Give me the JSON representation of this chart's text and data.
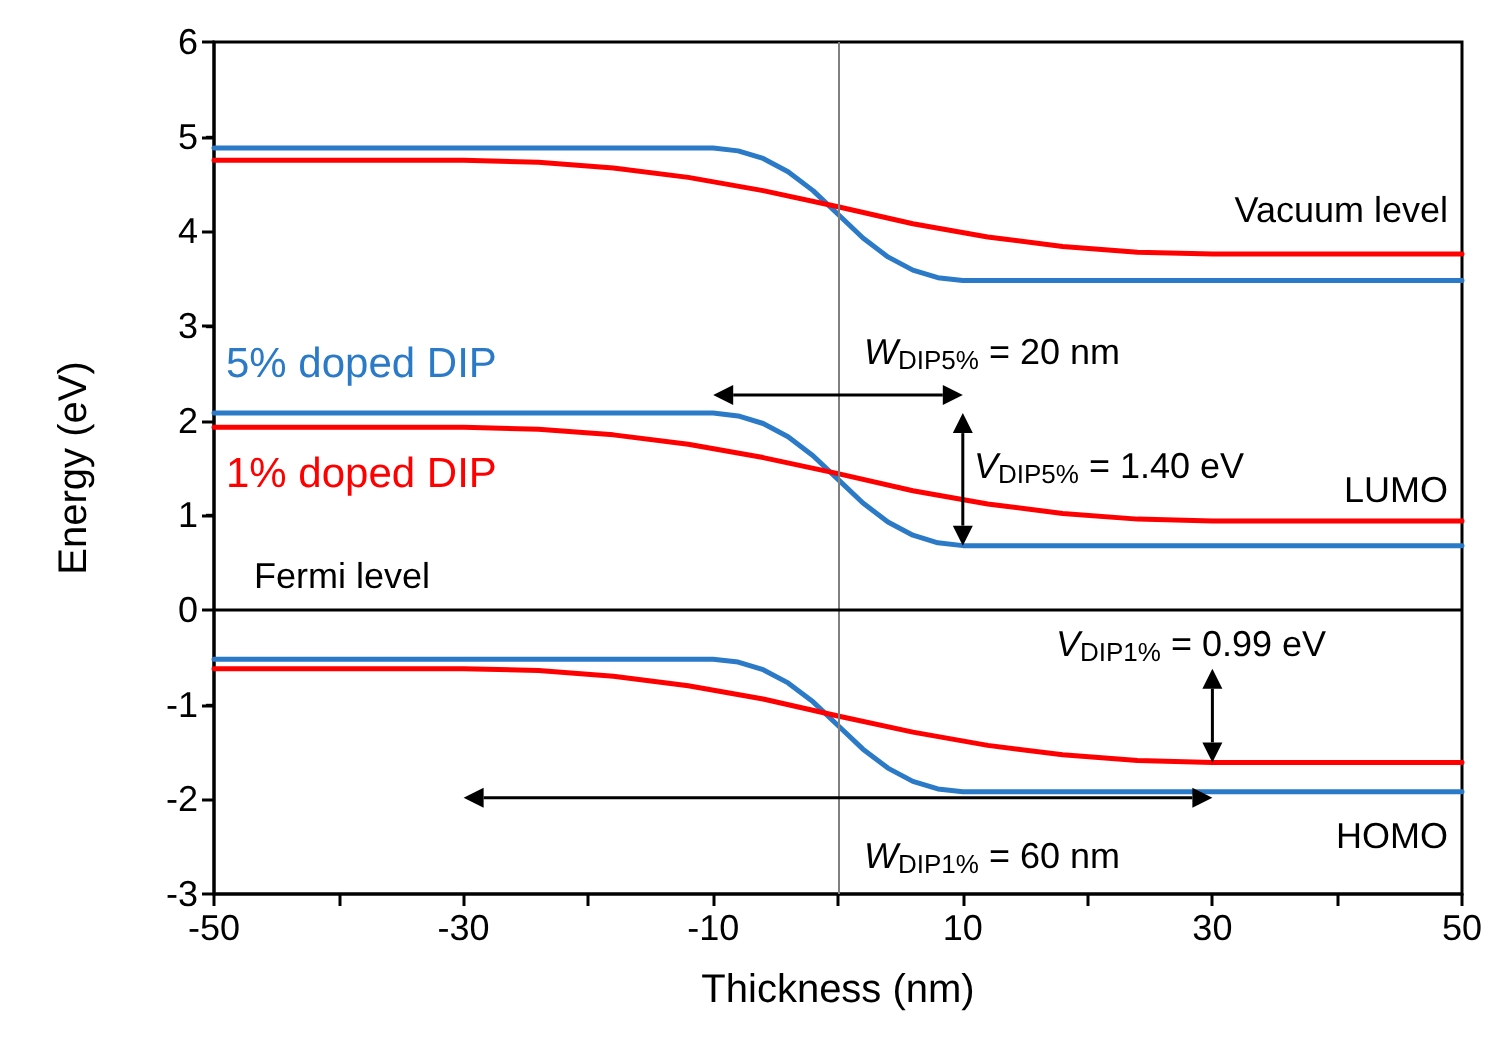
{
  "chart_data": {
    "type": "line",
    "xlabel": "Thickness (nm)",
    "ylabel": "Energy (eV)",
    "xlim": [
      -50,
      50
    ],
    "xticks": [
      -50,
      {
        "value": -40,
        "label": null
      },
      -30,
      {
        "value": -20,
        "label": null
      },
      -10,
      {
        "value": 0,
        "label": null
      },
      10,
      {
        "value": 20,
        "label": null
      },
      30,
      {
        "value": 40,
        "label": null
      },
      50
    ],
    "ylim": [
      -3,
      6
    ],
    "yticks": [
      -3,
      -2,
      -1,
      0,
      1,
      2,
      3,
      4,
      5,
      6
    ],
    "grid": false,
    "marker": "none",
    "line_style": "solid",
    "ref_lines": [
      {
        "axis": "x",
        "value": 0,
        "color": "#808080"
      },
      {
        "axis": "y",
        "value": 0,
        "color": "#000000"
      }
    ],
    "annotations": [
      "Vacuum level",
      "LUMO",
      "HOMO",
      "Fermi level",
      "W$_{DIP5%}$ = 20 nm",
      "V$_{DIP5%}$ = 1.40 eV",
      "V$_{DIP1%}$ = 0.99 eV",
      "W$_{DIP1%}$ = 60 nm"
    ],
    "series": [
      {
        "color": "#2a7ac8",
        "x": [
          -50,
          -10,
          -8,
          -6,
          -4,
          -2,
          0,
          2,
          4,
          6,
          8,
          10,
          50
        ],
        "values": [
          4.88,
          4.88,
          4.85,
          4.77,
          4.63,
          4.43,
          4.18,
          3.93,
          3.73,
          3.59,
          3.51,
          3.48,
          3.48
        ]
      },
      {
        "name": "5% doped DIP",
        "color": "#2a7ac8",
        "x": [
          -50,
          -10,
          -8,
          -6,
          -4,
          -2,
          0,
          2,
          4,
          6,
          8,
          10,
          50
        ],
        "values": [
          2.08,
          2.08,
          2.05,
          1.97,
          1.83,
          1.63,
          1.38,
          1.13,
          0.93,
          0.79,
          0.71,
          0.68,
          0.68
        ]
      },
      {
        "color": "#2a7ac8",
        "x": [
          -50,
          -10,
          -8,
          -6,
          -4,
          -2,
          0,
          2,
          4,
          6,
          8,
          10,
          50
        ],
        "values": [
          -0.52,
          -0.52,
          -0.55,
          -0.63,
          -0.77,
          -0.97,
          -1.22,
          -1.47,
          -1.67,
          -1.81,
          -1.89,
          -1.92,
          -1.92
        ]
      },
      {
        "color": "#ff0000",
        "x": [
          -50,
          -30,
          -24,
          -18,
          -12,
          -6,
          0,
          6,
          12,
          18,
          24,
          30,
          50
        ],
        "values": [
          4.75,
          4.75,
          4.73,
          4.67,
          4.57,
          4.43,
          4.26,
          4.08,
          3.94,
          3.84,
          3.78,
          3.76,
          3.76
        ]
      },
      {
        "name": "1% doped DIP",
        "color": "#ff0000",
        "x": [
          -50,
          -30,
          -24,
          -18,
          -12,
          -6,
          0,
          6,
          12,
          18,
          24,
          30,
          50
        ],
        "values": [
          1.93,
          1.93,
          1.91,
          1.85,
          1.75,
          1.61,
          1.44,
          1.26,
          1.12,
          1.02,
          0.96,
          0.94,
          0.94
        ]
      },
      {
        "color": "#ff0000",
        "x": [
          -50,
          -30,
          -24,
          -18,
          -12,
          -6,
          0,
          6,
          12,
          18,
          24,
          30,
          50
        ],
        "values": [
          -0.62,
          -0.62,
          -0.64,
          -0.7,
          -0.8,
          -0.94,
          -1.12,
          -1.29,
          -1.43,
          -1.53,
          -1.59,
          -1.61,
          -1.61
        ]
      }
    ]
  }
}
